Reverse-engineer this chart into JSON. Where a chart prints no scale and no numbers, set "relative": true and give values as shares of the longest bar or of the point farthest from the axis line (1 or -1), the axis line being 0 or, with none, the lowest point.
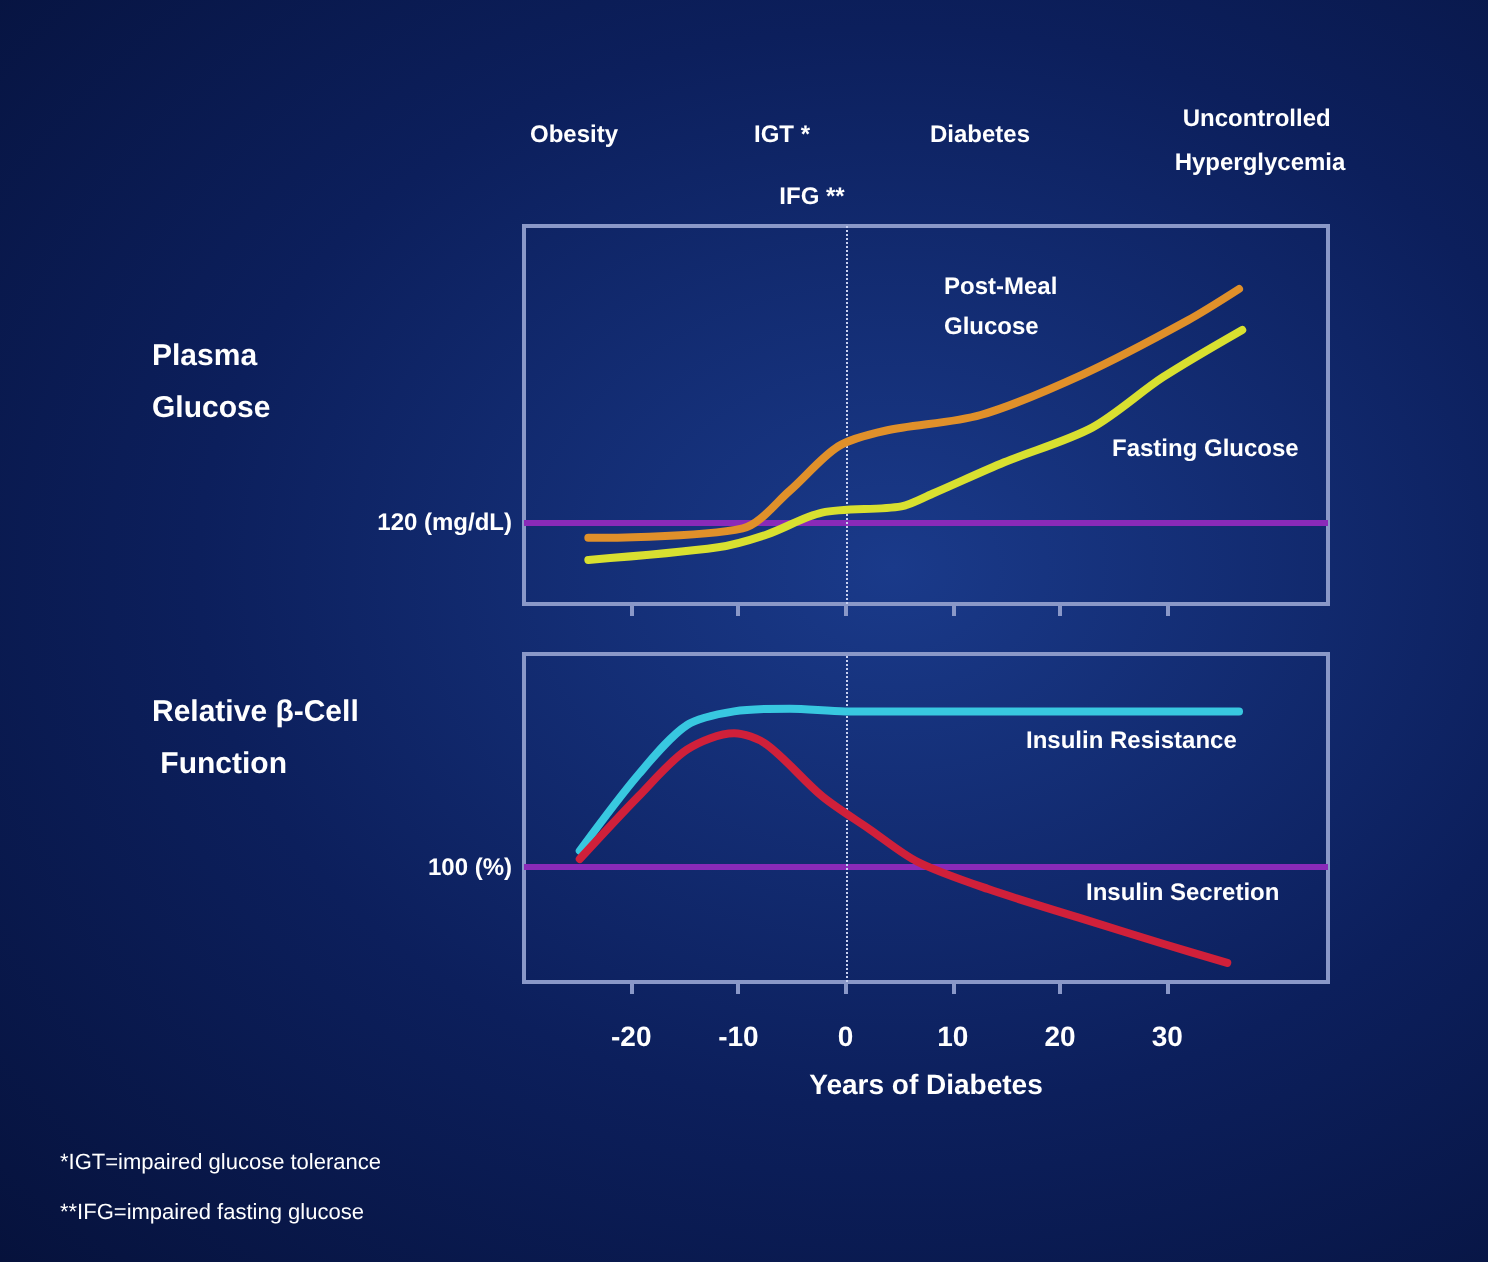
{
  "chart_data": [
    {
      "type": "line",
      "relative": true,
      "ylabel": "Plasma Glucose",
      "xlim": [
        -30,
        45
      ],
      "xticks": [
        -20,
        -10,
        0,
        10,
        20,
        30
      ],
      "tick_labels": false,
      "grid": false,
      "legend": false,
      "marker": "none",
      "line_style": "solid",
      "annotations": [
        "Obesity",
        "IGT *",
        "IFG **",
        "Diabetes",
        "Uncontrolled Hyperglycemia",
        "120 (mg/dL)"
      ],
      "ref_lines": [
        {
          "axis": "y",
          "value": 0.26,
          "color": "#8a2ab8",
          "line_style": "solid"
        },
        {
          "axis": "x",
          "value": 0,
          "label": null,
          "color": "#c8d0f0",
          "line_style": "dotted"
        }
      ],
      "series": [
        {
          "name": "Post-Meal Glucose",
          "color": "#e0902a",
          "x": [
            -24,
            -9.6,
            -5.2,
            -0.7,
            3.7,
            12.6,
            22.2,
            31.9,
            36.7
          ],
          "values": [
            0.21,
            0.24,
            0.36,
            0.5,
            0.55,
            0.6,
            0.73,
            0.9,
            1.0
          ]
        },
        {
          "name": "Fasting Glucose",
          "color": "#d8e030",
          "x": [
            -24,
            -11.9,
            -7.4,
            -2.2,
            5.2,
            8.1,
            14.8,
            23,
            29.6,
            37
          ],
          "values": [
            0.14,
            0.18,
            0.22,
            0.29,
            0.31,
            0.35,
            0.45,
            0.56,
            0.72,
            0.87
          ]
        }
      ]
    },
    {
      "type": "line",
      "relative": true,
      "ylabel": "Relative β-Cell Function",
      "xlabel": "Years of Diabetes",
      "xlim": [
        -30,
        45
      ],
      "xticks": [
        -20,
        -10,
        0,
        10,
        20,
        30
      ],
      "tick_labels": "x",
      "grid": false,
      "legend": false,
      "marker": "none",
      "line_style": "solid",
      "annotations": [
        "*IGT=impaired glucose tolerance",
        "**IFG=impaired fasting glucose",
        "100 (%)"
      ],
      "ref_lines": [
        {
          "axis": "y",
          "value": 0.42,
          "color": "#8a2ab8",
          "line_style": "solid"
        },
        {
          "axis": "x",
          "value": 0,
          "label": null,
          "color": "#c8d0f0",
          "line_style": "dotted"
        }
      ],
      "series": [
        {
          "name": "Insulin Resistance",
          "color": "#38c8e0",
          "x": [
            -24.8,
            -19.3,
            -14.8,
            -10.4,
            -5.2,
            0,
            36.7
          ],
          "values": [
            0.48,
            0.76,
            0.94,
            0.99,
            1.0,
            0.99,
            0.99
          ]
        },
        {
          "name": "Insulin Secretion",
          "color": "#d0203a",
          "x": [
            -24.8,
            -19.3,
            -14.8,
            -10.4,
            -7.4,
            -2.2,
            2.2,
            6.7,
            13.3,
            22.2,
            29.6,
            35.6
          ],
          "values": [
            0.45,
            0.68,
            0.85,
            0.91,
            0.87,
            0.68,
            0.56,
            0.44,
            0.34,
            0.23,
            0.14,
            0.07
          ]
        }
      ]
    }
  ]
}
